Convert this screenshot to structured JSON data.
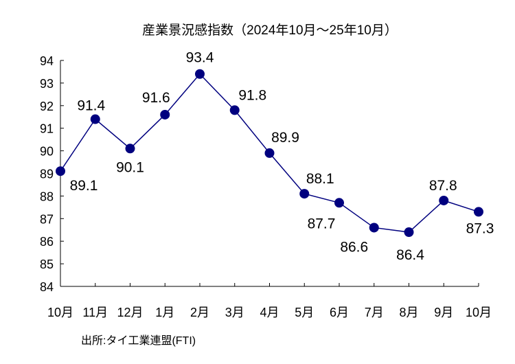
{
  "chart_data": {
    "type": "line",
    "title": "産業景況感指数（2024年10月～25年10月）",
    "categories": [
      "10月",
      "11月",
      "12月",
      "1月",
      "2月",
      "3月",
      "4月",
      "5月",
      "6月",
      "7月",
      "8月",
      "9月",
      "10月"
    ],
    "series": [
      {
        "values": [
          89.1,
          91.4,
          90.1,
          91.6,
          93.4,
          91.8,
          89.9,
          88.1,
          87.7,
          86.6,
          86.4,
          87.8,
          87.3
        ]
      }
    ],
    "ylim": [
      84,
      94
    ],
    "yticks": [
      84,
      85,
      86,
      87,
      88,
      89,
      90,
      91,
      92,
      93,
      94
    ],
    "grid": false,
    "line_color": "#00007f",
    "marker_color": "#00007f",
    "source": "出所:タイ工業連盟(FTI)"
  }
}
